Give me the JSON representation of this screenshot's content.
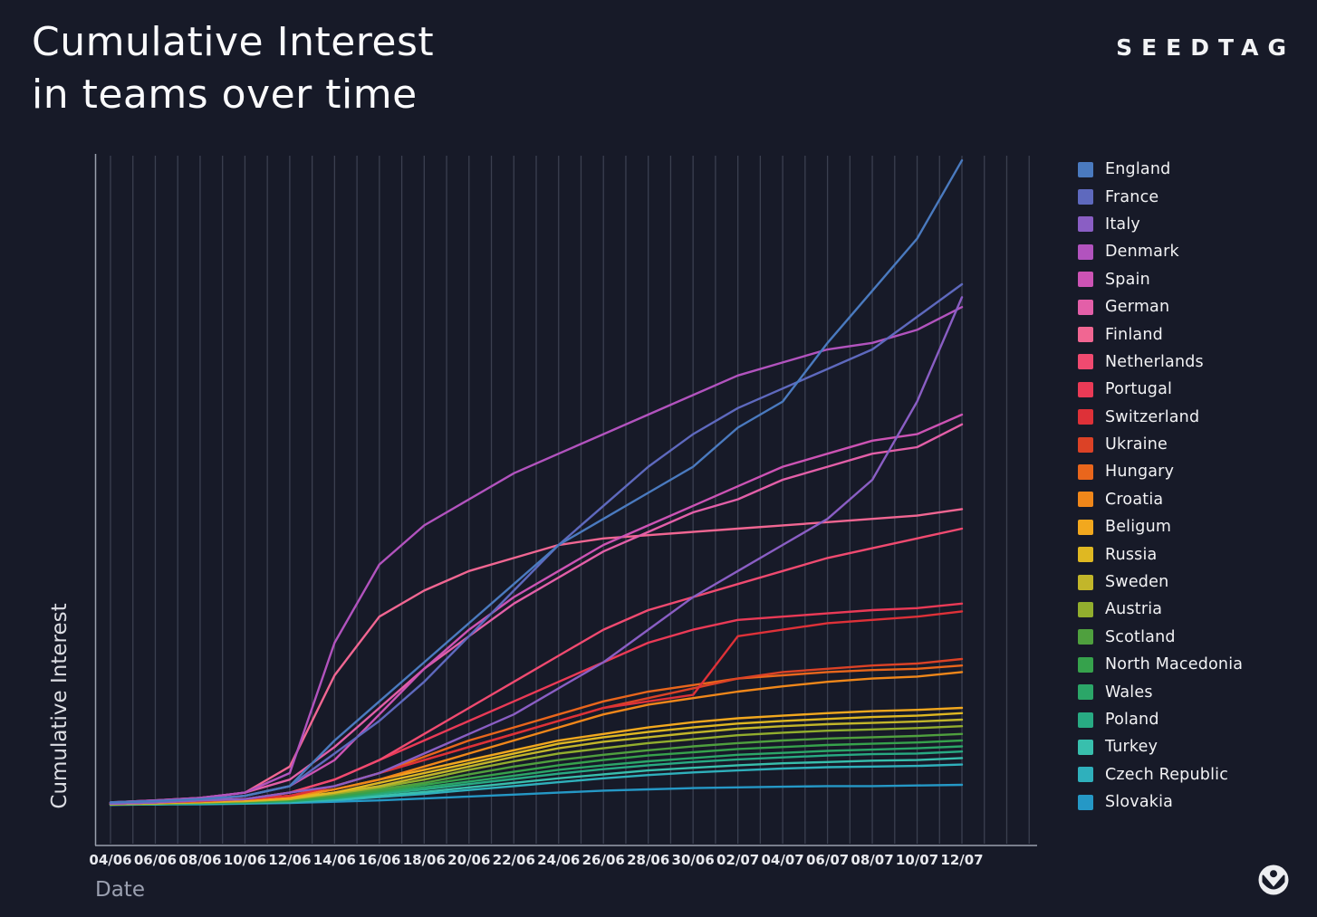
{
  "page": {
    "title_line1": "Cumulative Interest",
    "title_line2": "in teams over time",
    "brand": "SEEDTAG"
  },
  "chart_data": {
    "type": "line",
    "title": "Cumulative Interest in teams over time",
    "xlabel": "Date",
    "ylabel": "Cumulative Interest",
    "ylim": [
      0,
      100
    ],
    "y_tick_labels_visible": false,
    "grid": "vertical, one line per day, extending 3 days past last data point",
    "legend_position": "right",
    "x_ticks": [
      "04/06",
      "06/06",
      "08/06",
      "10/06",
      "12/06",
      "14/06",
      "16/06",
      "18/06",
      "20/06",
      "22/06",
      "24/06",
      "26/06",
      "28/06",
      "30/06",
      "02/07",
      "04/07",
      "06/07",
      "08/07",
      "10/07",
      "12/07"
    ],
    "series": [
      {
        "name": "England",
        "color": "#4A7ABF",
        "values": [
          0.5,
          0.7,
          1,
          1.5,
          3,
          10,
          16,
          22,
          28,
          34,
          40,
          44,
          48,
          52,
          58,
          62,
          71,
          79,
          87,
          99
        ]
      },
      {
        "name": "France",
        "color": "#5E69BE",
        "values": [
          0.5,
          0.7,
          1,
          1.5,
          3,
          8,
          13,
          19,
          26,
          33,
          40,
          46,
          52,
          57,
          61,
          64,
          67,
          70,
          75,
          80
        ]
      },
      {
        "name": "Italy",
        "color": "#8A5EC4",
        "values": [
          0.3,
          0.5,
          0.8,
          1,
          2,
          3,
          5,
          8,
          11,
          14,
          18,
          22,
          27,
          32,
          36,
          40,
          44,
          50,
          62,
          78
        ]
      },
      {
        "name": "Denmark",
        "color": "#B253BE",
        "values": [
          0.5,
          0.8,
          1.2,
          2,
          5,
          25,
          37,
          43,
          47,
          51,
          54,
          57,
          60,
          63,
          66,
          68,
          70,
          71,
          73,
          76.5
        ]
      },
      {
        "name": "Spain",
        "color": "#CC53B4",
        "values": [
          0.3,
          0.5,
          0.8,
          1.5,
          3,
          7,
          14,
          21,
          27,
          32,
          36,
          40,
          43,
          46,
          49,
          52,
          54,
          56,
          57,
          60
        ]
      },
      {
        "name": "German",
        "color": "#E35FA8",
        "values": [
          0.5,
          0.8,
          1.2,
          2,
          4,
          9,
          15,
          21,
          26,
          31,
          35,
          39,
          42,
          45,
          47,
          50,
          52,
          54,
          55,
          58.5
        ]
      },
      {
        "name": "Finland",
        "color": "#F16692",
        "values": [
          0.5,
          0.8,
          1.2,
          2,
          6,
          20,
          29,
          33,
          36,
          38,
          40,
          41,
          41.5,
          42,
          42.5,
          43,
          43.5,
          44,
          44.5,
          45.5
        ]
      },
      {
        "name": "Netherlands",
        "color": "#F04A70",
        "values": [
          0.3,
          0.5,
          0.8,
          1,
          2,
          4,
          7,
          11,
          15,
          19,
          23,
          27,
          30,
          32,
          34,
          36,
          38,
          39.5,
          41,
          42.5
        ]
      },
      {
        "name": "Portugal",
        "color": "#EA3A56",
        "values": [
          0.3,
          0.5,
          0.8,
          1,
          2,
          4,
          7,
          10,
          13,
          16,
          19,
          22,
          25,
          27,
          28.5,
          29,
          29.5,
          30,
          30.3,
          31
        ]
      },
      {
        "name": "Switzerland",
        "color": "#DE3138",
        "values": [
          0.3,
          0.5,
          0.8,
          1,
          1.5,
          3,
          5,
          7,
          9,
          11,
          13,
          15,
          16,
          17,
          26,
          27,
          28,
          28.5,
          29,
          29.8
        ]
      },
      {
        "name": "Ukraine",
        "color": "#DC4226",
        "values": [
          0.3,
          0.5,
          0.7,
          1,
          1.5,
          3,
          5,
          7,
          9,
          11,
          13,
          15,
          16.5,
          18,
          19.5,
          20.5,
          21,
          21.5,
          21.8,
          22.5
        ]
      },
      {
        "name": "Hungary",
        "color": "#E9661C",
        "values": [
          0.3,
          0.5,
          0.7,
          1,
          1.5,
          3,
          5,
          7.5,
          10,
          12,
          14,
          16,
          17.5,
          18.5,
          19.5,
          20,
          20.5,
          20.8,
          21,
          21.5
        ]
      },
      {
        "name": "Croatia",
        "color": "#F0871A",
        "values": [
          0.3,
          0.5,
          0.7,
          1,
          1.5,
          2.5,
          4,
          6,
          8,
          10,
          12,
          14,
          15.5,
          16.5,
          17.5,
          18.3,
          19,
          19.5,
          19.8,
          20.5
        ]
      },
      {
        "name": "Beligum",
        "color": "#F2A81E",
        "values": [
          0.3,
          0.4,
          0.6,
          0.8,
          1.2,
          2.5,
          4,
          5.5,
          7,
          8.5,
          10,
          11,
          12,
          12.8,
          13.4,
          13.8,
          14.2,
          14.5,
          14.7,
          15
        ]
      },
      {
        "name": "Russia",
        "color": "#DFB822",
        "values": [
          0.3,
          0.4,
          0.6,
          0.8,
          1.2,
          2,
          3.5,
          5,
          6.5,
          8,
          9.5,
          10.5,
          11.3,
          12,
          12.6,
          13,
          13.3,
          13.6,
          13.8,
          14.2
        ]
      },
      {
        "name": "Sweden",
        "color": "#C2B62A",
        "values": [
          0.2,
          0.4,
          0.5,
          0.7,
          1,
          2,
          3,
          4.5,
          6,
          7.5,
          8.8,
          9.8,
          10.5,
          11.2,
          11.8,
          12.2,
          12.5,
          12.7,
          12.9,
          13.2
        ]
      },
      {
        "name": "Austria",
        "color": "#92AE2E",
        "values": [
          0.2,
          0.3,
          0.5,
          0.7,
          1,
          1.8,
          2.8,
          4,
          5.5,
          6.8,
          8,
          8.8,
          9.6,
          10.2,
          10.8,
          11.2,
          11.5,
          11.7,
          11.9,
          12.2
        ]
      },
      {
        "name": "Scotland",
        "color": "#4FA03E",
        "values": [
          0.2,
          0.3,
          0.5,
          0.6,
          0.9,
          1.6,
          2.5,
          3.5,
          4.8,
          6,
          7,
          7.8,
          8.5,
          9.1,
          9.6,
          10,
          10.3,
          10.5,
          10.7,
          11
        ]
      },
      {
        "name": "North Macedonia",
        "color": "#36A24C",
        "values": [
          0.2,
          0.3,
          0.4,
          0.6,
          0.8,
          1.4,
          2.2,
          3.2,
          4.2,
          5.2,
          6.2,
          7,
          7.7,
          8.2,
          8.7,
          9,
          9.3,
          9.5,
          9.7,
          10
        ]
      },
      {
        "name": "Wales",
        "color": "#2BA668",
        "values": [
          0.2,
          0.3,
          0.4,
          0.5,
          0.7,
          1.2,
          2,
          2.8,
          3.7,
          4.6,
          5.5,
          6.2,
          6.8,
          7.3,
          7.8,
          8.1,
          8.4,
          8.6,
          8.8,
          9.1
        ]
      },
      {
        "name": "Poland",
        "color": "#28AA83",
        "values": [
          0.2,
          0.3,
          0.4,
          0.5,
          0.7,
          1.1,
          1.8,
          2.5,
          3.3,
          4.1,
          4.9,
          5.6,
          6.2,
          6.7,
          7.1,
          7.4,
          7.7,
          7.9,
          8,
          8.3
        ]
      },
      {
        "name": "Turkey",
        "color": "#38BFAD",
        "values": [
          0.2,
          0.2,
          0.3,
          0.4,
          0.6,
          1,
          1.5,
          2.1,
          2.8,
          3.5,
          4.2,
          4.8,
          5.4,
          5.8,
          6.2,
          6.5,
          6.7,
          6.9,
          7,
          7.3
        ]
      },
      {
        "name": "Czech Republic",
        "color": "#2FB0BC",
        "values": [
          0.2,
          0.2,
          0.3,
          0.4,
          0.5,
          0.8,
          1.3,
          1.8,
          2.4,
          3,
          3.6,
          4.2,
          4.7,
          5.1,
          5.4,
          5.7,
          5.9,
          6,
          6.1,
          6.3
        ]
      },
      {
        "name": "Slovakia",
        "color": "#2598C6",
        "values": [
          0.1,
          0.2,
          0.2,
          0.3,
          0.4,
          0.6,
          0.8,
          1.1,
          1.4,
          1.7,
          2,
          2.3,
          2.5,
          2.7,
          2.8,
          2.9,
          3,
          3,
          3.1,
          3.2
        ]
      }
    ],
    "style": {
      "background": "#171A28",
      "gridline_color": "#3B4050",
      "axis_line_color": "#9AA0AD",
      "text_color": "#F2F2F4"
    }
  }
}
